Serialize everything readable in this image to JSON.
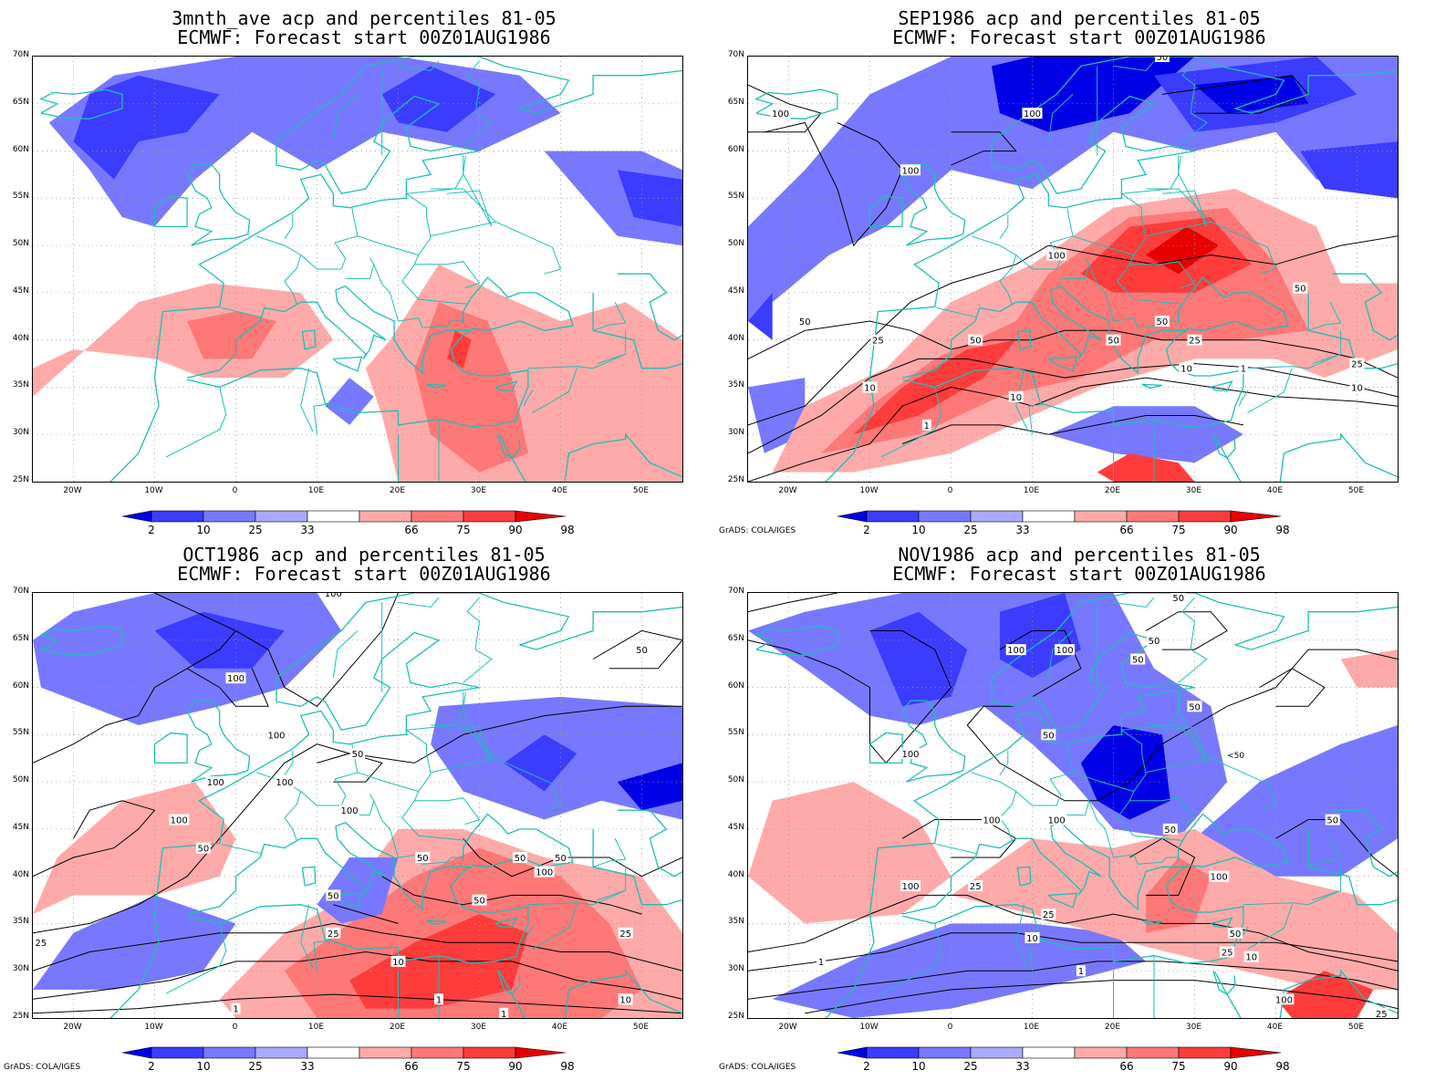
{
  "panels": [
    {
      "title1": "3mnth_ave acp and percentiles 81-05",
      "title2": "ECMWF: Forecast start 00Z01AUG1986",
      "credit": ""
    },
    {
      "title1": "SEP1986 acp and percentiles 81-05",
      "title2": "ECMWF: Forecast start 00Z01AUG1986",
      "credit": "GrADS: COLA/IGES"
    },
    {
      "title1": "OCT1986 acp and percentiles 81-05",
      "title2": "ECMWF: Forecast start 00Z01AUG1986",
      "credit": "GrADS: COLA/IGES"
    },
    {
      "title1": "NOV1986 acp and percentiles 81-05",
      "title2": "ECMWF: Forecast start 00Z01AUG1986",
      "credit": "GrADS: COLA/IGES"
    }
  ],
  "axes": {
    "lat_labels": [
      "70N",
      "65N",
      "60N",
      "55N",
      "50N",
      "45N",
      "40N",
      "35N",
      "30N",
      "25N"
    ],
    "lon_labels": [
      "20W",
      "10W",
      "0",
      "10E",
      "20E",
      "30E",
      "40E",
      "50E"
    ]
  },
  "colorbar": {
    "labels": [
      "2",
      "10",
      "25",
      "33",
      "66",
      "75",
      "90",
      "98"
    ],
    "colors": [
      "#0000e6",
      "#3c3cff",
      "#7878ff",
      "#aaaaff",
      "#ffffff",
      "#ffaaaa",
      "#ff7878",
      "#ff3c3c",
      "#e60000"
    ]
  },
  "contour_labels": [
    [],
    [
      "100",
      "100",
      "100",
      "100",
      "50",
      "50",
      "50",
      "50",
      "50",
      "50",
      "25",
      "25",
      "25",
      "10",
      "10",
      "10",
      "1",
      "1",
      "25",
      "10"
    ],
    [
      "100",
      "100",
      "100",
      "100",
      "100",
      "100",
      "50",
      "50",
      "50",
      "50",
      "50",
      "50",
      "50",
      "50",
      "25",
      "25",
      "25",
      "10",
      "10",
      "1",
      "1",
      "1",
      "100",
      "100"
    ],
    [
      "50",
      "50",
      "50",
      "50",
      "50",
      "100",
      "100",
      "100",
      "100",
      "100",
      "100",
      "100",
      "50",
      "50",
      "25",
      "25",
      "10",
      "1",
      "1",
      "100",
      "50",
      "25",
      "10",
      "25"
    ]
  ],
  "hashmark_text": "<50"
}
